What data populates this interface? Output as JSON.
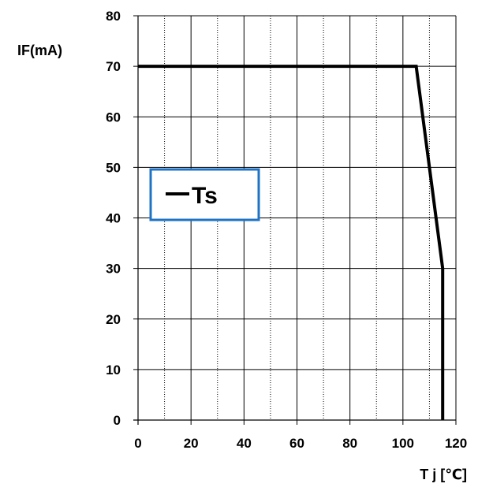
{
  "chart_data": {
    "type": "line",
    "title": "",
    "ylabel": "IF(mA)",
    "xlabel": "T j [℃]",
    "xlim": [
      0,
      120
    ],
    "ylim": [
      0,
      80
    ],
    "x_ticks": [
      "0",
      "20",
      "40",
      "60",
      "80",
      "100",
      "120"
    ],
    "y_ticks": [
      "0",
      "10",
      "20",
      "30",
      "40",
      "50",
      "60",
      "70",
      "80"
    ],
    "grid": {
      "major_x": [
        0,
        20,
        40,
        60,
        80,
        100,
        120
      ],
      "minor_x_dotted": [
        10,
        30,
        50,
        70,
        90,
        110
      ],
      "major_y": [
        0,
        10,
        20,
        30,
        40,
        50,
        60,
        70,
        80
      ]
    },
    "legend_position": "center-left",
    "legend_box_color": "#1f73c4",
    "line_color": "#000000",
    "series": [
      {
        "name": "Ts",
        "x": [
          0,
          105,
          115,
          115
        ],
        "y": [
          70,
          70,
          30,
          0
        ]
      }
    ]
  }
}
